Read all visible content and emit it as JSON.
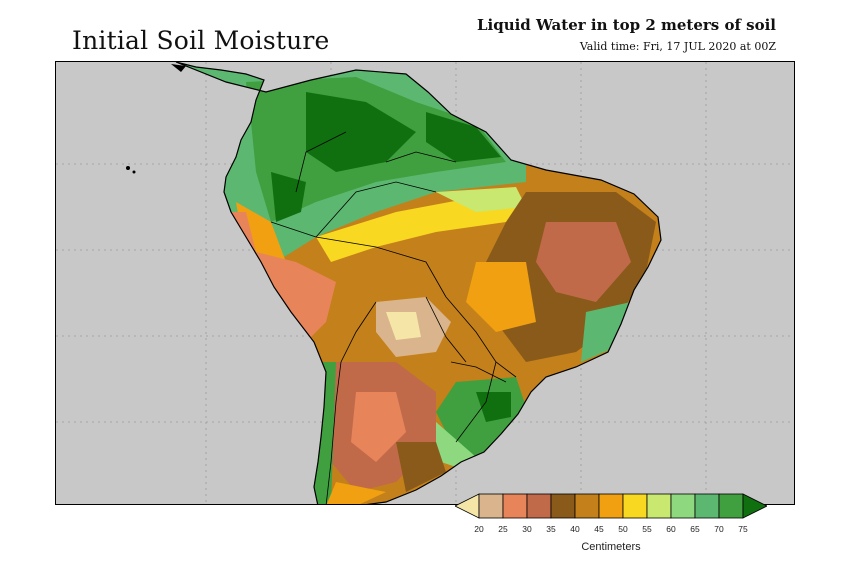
{
  "header": {
    "title": "Initial Soil Moisture",
    "product": "Liquid Water in top 2 meters of soil",
    "valid_time": "Valid time: Fri, 17 JUL 2020 at 00Z"
  },
  "map": {
    "region": "South America",
    "ocean_color": "#c8c8c8",
    "border_color": "#000000",
    "grid_style": "dotted"
  },
  "legend": {
    "unit": "Centimeters",
    "ticks": [
      "20",
      "25",
      "30",
      "35",
      "40",
      "45",
      "50",
      "55",
      "60",
      "65",
      "70",
      "75"
    ],
    "colors": {
      "below_20": "#f5e6a8",
      "20_25": "#d9b48c",
      "25_30": "#e8845a",
      "30_35": "#c06a4a",
      "35_40": "#8a5a1a",
      "40_45": "#c4801a",
      "45_50": "#f0a010",
      "50_55": "#f8d820",
      "55_60": "#c8e870",
      "60_65": "#8ed880",
      "65_70": "#5cb870",
      "70_75": "#40a040",
      "above_75": "#107010"
    }
  }
}
